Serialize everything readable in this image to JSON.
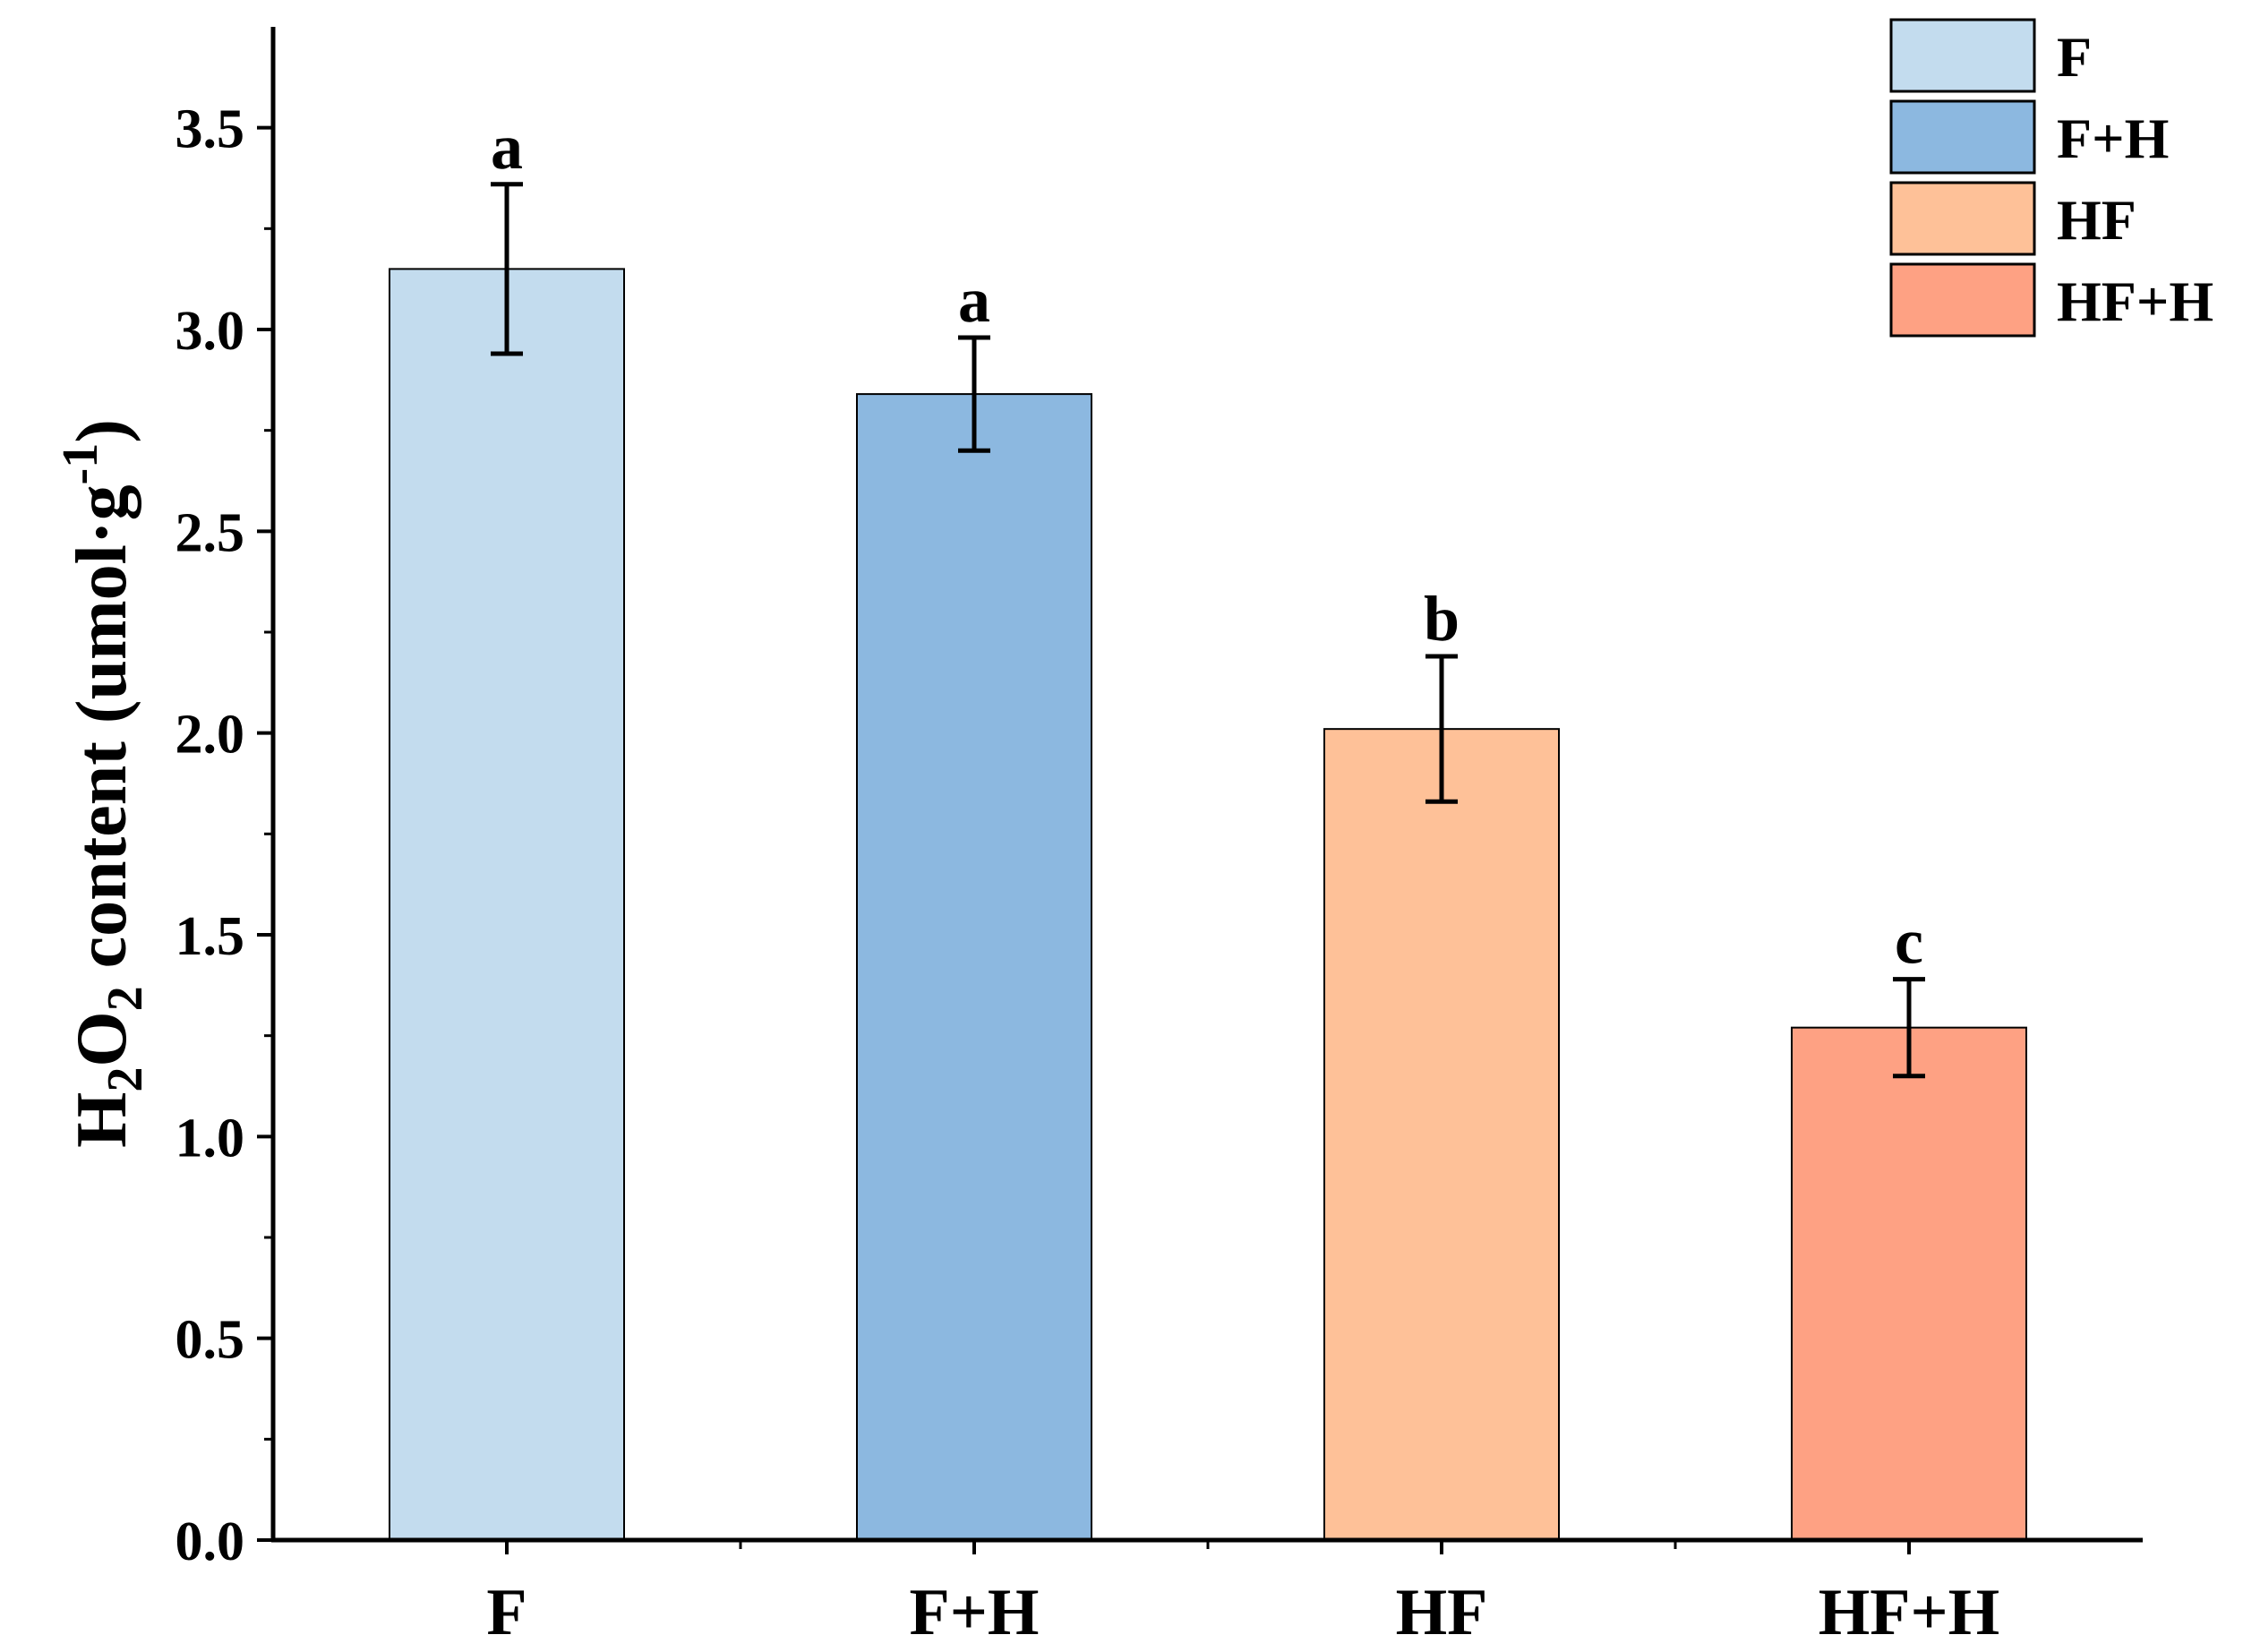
{
  "chart_data": {
    "type": "bar",
    "categories": [
      "F",
      "F+H",
      "HF",
      "HF+H"
    ],
    "values": [
      3.15,
      2.84,
      2.01,
      1.27
    ],
    "errors": [
      0.21,
      0.14,
      0.18,
      0.12
    ],
    "significance": [
      "a",
      "a",
      "b",
      "c"
    ],
    "colors": [
      "#c3dcee",
      "#8cb8e0",
      "#fec198",
      "#fea183"
    ],
    "ylabel": {
      "prefix": "H",
      "sub1": "2",
      "mid": "O",
      "sub2": "2",
      "main": " content (umol·g",
      "sup": "-1",
      "close": ")"
    },
    "ylim": [
      0,
      3.75
    ],
    "yticks": [
      "0.0",
      "0.5",
      "1.0",
      "1.5",
      "2.0",
      "2.5",
      "3.0",
      "3.5"
    ],
    "legend": {
      "position": "top-right",
      "entries": [
        "F",
        "F+H",
        "HF",
        "HF+H"
      ]
    },
    "grid": false
  }
}
